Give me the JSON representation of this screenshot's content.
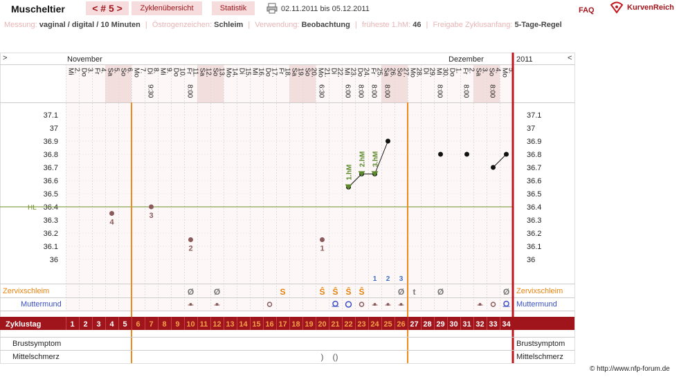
{
  "header": {
    "title": "Muscheltier",
    "cycle_label": "< # 5 >",
    "tab_overview": "Zyklenübersicht",
    "tab_stats": "Statistik",
    "date_range": "02.11.2011 bis 05.12.2011",
    "faq": "FAQ",
    "brand": "KurvenReich"
  },
  "info": {
    "messung_label": "Messung:",
    "messung_value": "vaginal / digital / 10 Minuten",
    "oestrogen_label": "Östrogenzeichen:",
    "oestrogen_value": "Schleim",
    "verwendung_label": "Verwendung:",
    "verwendung_value": "Beobachtung",
    "hm_label": "früheste 1.hM:",
    "hm_value": "46",
    "freigabe_label": "Freigabe Zyklusanfang:",
    "freigabe_value": "5-Tage-Regel"
  },
  "footer": "© http://www.nfp-forum.de",
  "chart_data": {
    "type": "line",
    "nav_left": ">",
    "nav_right": "<",
    "months": [
      {
        "label": "November",
        "start_index": 0
      },
      {
        "label": "Dezember",
        "start_index": 29
      }
    ],
    "year_label": "2011",
    "days": [
      {
        "d": "2.",
        "w": "Mi",
        "we": false,
        "t": ""
      },
      {
        "d": "3.",
        "w": "Do",
        "we": false,
        "t": ""
      },
      {
        "d": "4.",
        "w": "Fr",
        "we": false,
        "t": ""
      },
      {
        "d": "5.",
        "w": "Sa",
        "we": true,
        "t": ""
      },
      {
        "d": "6.",
        "w": "So",
        "we": true,
        "t": ""
      },
      {
        "d": "7.",
        "w": "Mo",
        "we": false,
        "t": ""
      },
      {
        "d": "8.",
        "w": "Di",
        "we": false,
        "t": "9:30"
      },
      {
        "d": "9.",
        "w": "Mi",
        "we": false,
        "t": ""
      },
      {
        "d": "10.",
        "w": "Do",
        "we": false,
        "t": ""
      },
      {
        "d": "11.",
        "w": "Fr",
        "we": false,
        "t": "8:00"
      },
      {
        "d": "12.",
        "w": "Sa",
        "we": true,
        "t": ""
      },
      {
        "d": "13.",
        "w": "So",
        "we": true,
        "t": ""
      },
      {
        "d": "14.",
        "w": "Mo",
        "we": false,
        "t": ""
      },
      {
        "d": "15.",
        "w": "Di",
        "we": false,
        "t": ""
      },
      {
        "d": "16.",
        "w": "Mi",
        "we": false,
        "t": ""
      },
      {
        "d": "17.",
        "w": "Do",
        "we": false,
        "t": ""
      },
      {
        "d": "18.",
        "w": "Fr",
        "we": false,
        "t": ""
      },
      {
        "d": "19.",
        "w": "Sa",
        "we": true,
        "t": ""
      },
      {
        "d": "20.",
        "w": "So",
        "we": true,
        "t": ""
      },
      {
        "d": "21.",
        "w": "Mo",
        "we": false,
        "t": "6:30"
      },
      {
        "d": "22.",
        "w": "Di",
        "we": false,
        "t": ""
      },
      {
        "d": "23.",
        "w": "Mi",
        "we": false,
        "t": "6:00"
      },
      {
        "d": "24.",
        "w": "Do",
        "we": false,
        "t": "8:00"
      },
      {
        "d": "25.",
        "w": "Fr",
        "we": false,
        "t": "8:00"
      },
      {
        "d": "26.",
        "w": "Sa",
        "we": true,
        "t": "8:00"
      },
      {
        "d": "27.",
        "w": "So",
        "we": true,
        "t": ""
      },
      {
        "d": "28.",
        "w": "Mo",
        "we": false,
        "t": ""
      },
      {
        "d": "29.",
        "w": "Di",
        "we": false,
        "t": ""
      },
      {
        "d": "30.",
        "w": "Mi",
        "we": false,
        "t": "8:00"
      },
      {
        "d": "1.",
        "w": "Do",
        "we": false,
        "t": ""
      },
      {
        "d": "2.",
        "w": "Fr",
        "we": false,
        "t": "8:00"
      },
      {
        "d": "3.",
        "w": "Sa",
        "we": true,
        "t": ""
      },
      {
        "d": "4.",
        "w": "So",
        "we": true,
        "t": "8:00"
      },
      {
        "d": "5.",
        "w": "Mo",
        "we": false,
        "t": ""
      }
    ],
    "y_ticks": [
      37.1,
      37,
      36.9,
      36.8,
      36.7,
      36.6,
      36.5,
      36.4,
      36.3,
      36.2,
      36.1,
      36
    ],
    "ylim": [
      35.95,
      37.15
    ],
    "hl_label": "HL",
    "hl_value": 36.4,
    "excluded_points": [
      {
        "day": 4,
        "value": 36.35,
        "label": "4"
      },
      {
        "day": 7,
        "value": 36.4,
        "label": "3"
      },
      {
        "day": 10,
        "value": 36.15,
        "label": "2"
      },
      {
        "day": 20,
        "value": 36.15,
        "label": "1"
      }
    ],
    "temperature": [
      {
        "day": 22,
        "value": 36.55
      },
      {
        "day": 23,
        "value": 36.65
      },
      {
        "day": 24,
        "value": 36.65
      },
      {
        "day": 25,
        "value": 36.9
      },
      {
        "day": 29,
        "value": 36.8
      },
      {
        "day": 31,
        "value": 36.8
      },
      {
        "day": 33,
        "value": 36.7
      },
      {
        "day": 34,
        "value": 36.8
      }
    ],
    "connections": [
      [
        22,
        23
      ],
      [
        23,
        24
      ],
      [
        24,
        25
      ],
      [
        33,
        34
      ]
    ],
    "hm_markers": [
      {
        "day": 22,
        "value": 36.55,
        "label": "1.hM"
      },
      {
        "day": 23,
        "value": 36.65,
        "label": "2.hM"
      },
      {
        "day": 24,
        "value": 36.65,
        "label": "3.hM"
      }
    ],
    "count_labels": [
      {
        "day": 24,
        "label": "1"
      },
      {
        "day": 25,
        "label": "2"
      },
      {
        "day": 26,
        "label": "3"
      }
    ],
    "rows": {
      "zervix_label": "Zervixschleim",
      "muttermund_label": "Muttermund",
      "zyklustag_label": "Zyklustag",
      "brust_label": "Brustsymptom",
      "mittel_label": "Mittelschmerz"
    },
    "zervix": [
      {
        "day": 10,
        "sym": "Ø",
        "color": "#777"
      },
      {
        "day": 12,
        "sym": "Ø",
        "color": "#777"
      },
      {
        "day": 17,
        "sym": "S",
        "color": "#e8820c"
      },
      {
        "day": 20,
        "sym": "Ŝ",
        "color": "#e8820c"
      },
      {
        "day": 21,
        "sym": "Ŝ",
        "color": "#e8820c"
      },
      {
        "day": 22,
        "sym": "Ŝ",
        "color": "#e8820c"
      },
      {
        "day": 23,
        "sym": "Ŝ",
        "color": "#e8820c"
      },
      {
        "day": 26,
        "sym": "Ø",
        "color": "#777"
      },
      {
        "day": 27,
        "sym": "t",
        "color": "#777"
      },
      {
        "day": 29,
        "sym": "Ø",
        "color": "#777"
      },
      {
        "day": 34,
        "sym": "Ø",
        "color": "#777"
      }
    ],
    "muttermund": [
      {
        "day": 10,
        "kind": "dot-low"
      },
      {
        "day": 12,
        "kind": "dot-low"
      },
      {
        "day": 16,
        "kind": "ring"
      },
      {
        "day": 21,
        "kind": "open"
      },
      {
        "day": 22,
        "kind": "ring-open"
      },
      {
        "day": 23,
        "kind": "ring"
      },
      {
        "day": 24,
        "kind": "dot-low"
      },
      {
        "day": 25,
        "kind": "dot-low"
      },
      {
        "day": 26,
        "kind": "dot-low"
      },
      {
        "day": 32,
        "kind": "dot-low"
      },
      {
        "day": 33,
        "kind": "ring"
      },
      {
        "day": 34,
        "kind": "open"
      }
    ],
    "mittelschmerz": [
      {
        "day": 20,
        "sym": ")"
      },
      {
        "day": 21,
        "sym": "()"
      }
    ],
    "fertile_start_day": 5,
    "fertile_end_day": 26,
    "orange_days_from": 6,
    "orange_days_to": 26
  }
}
